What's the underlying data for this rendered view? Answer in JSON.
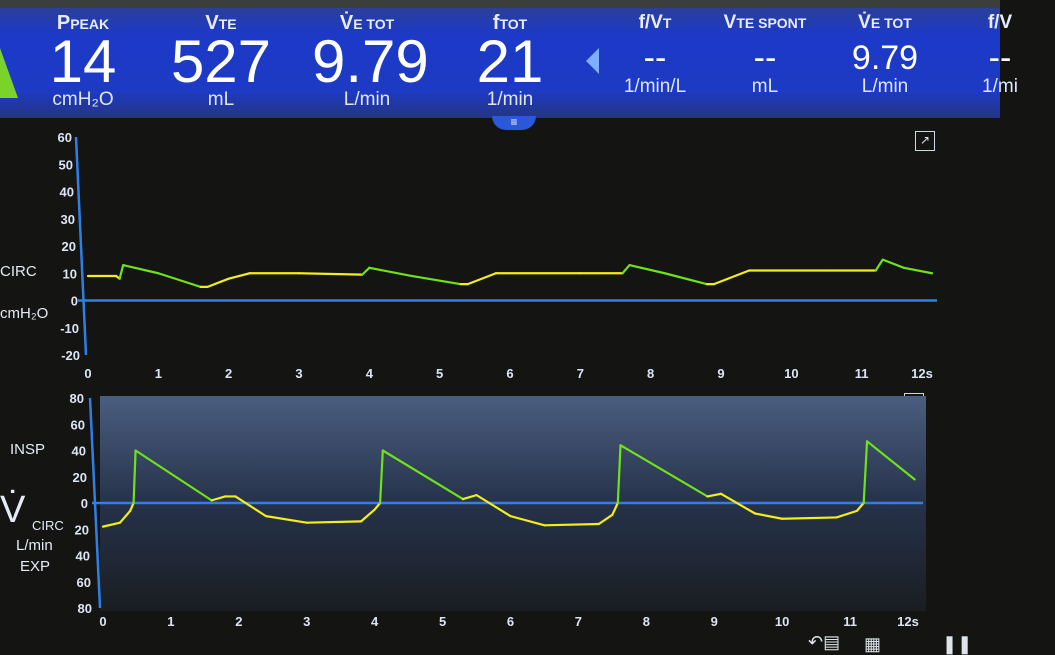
{
  "header": {
    "params": [
      {
        "label": "P",
        "sub": "PEAK",
        "value": "14",
        "unit": "cmH₂O"
      },
      {
        "label": "V",
        "sub": "TE",
        "value": "527",
        "unit": "mL"
      },
      {
        "label": "V̇",
        "sub": "E TOT",
        "value": "9.79",
        "unit": "L/min"
      },
      {
        "label": "f",
        "sub": "TOT",
        "value": "21",
        "unit": "1/min"
      }
    ],
    "secondary": [
      {
        "label": "f/V",
        "sub": "T",
        "value": "--",
        "unit": "1/min/L"
      },
      {
        "label": "V",
        "sub": "TE SPONT",
        "value": "--",
        "unit": "mL"
      },
      {
        "label": "V̇",
        "sub": "E TOT",
        "value": "9.79",
        "unit": "L/min"
      },
      {
        "label": "f/V",
        "sub": "",
        "value": "--",
        "unit": "1/mi"
      }
    ],
    "handle_icon": "≡"
  },
  "pressure": {
    "ylabel": "CIRC",
    "unit": "cmH₂O",
    "yticks": [
      "60",
      "50",
      "40",
      "30",
      "20",
      "10",
      "0",
      "-10",
      "-20"
    ],
    "xticks": [
      "0",
      "1",
      "2",
      "3",
      "4",
      "5",
      "6",
      "7",
      "8",
      "9",
      "10",
      "11",
      "12s"
    ],
    "expand_icon": "↗"
  },
  "flow": {
    "ylabel_symbol": "V̇",
    "ylabel": "CIRC",
    "unit": "L/min",
    "insp": "INSP",
    "exp": "EXP",
    "yticks": [
      "80",
      "60",
      "40",
      "20",
      "0",
      "20",
      "40",
      "60",
      "80"
    ],
    "xticks": [
      "0",
      "1",
      "2",
      "3",
      "4",
      "5",
      "6",
      "7",
      "8",
      "9",
      "10",
      "11",
      "12s"
    ],
    "expand_icon": "↗"
  },
  "colors": {
    "header": "#1d3ac4",
    "insp_trace": "#6fe21a",
    "exp_trace": "#f2ee1c",
    "axis": "#2f7fe6"
  },
  "chart_data": [
    {
      "type": "line",
      "ylabel": "CIRC cmH₂O",
      "xlim": [
        0,
        12
      ],
      "ylim": [
        -20,
        60
      ],
      "points": [
        [
          0,
          9,
          "e"
        ],
        [
          0.4,
          9,
          "e"
        ],
        [
          0.45,
          8,
          "e"
        ],
        [
          0.5,
          13,
          "i"
        ],
        [
          1.0,
          10,
          "i"
        ],
        [
          1.6,
          5,
          "i"
        ],
        [
          1.7,
          5,
          "e"
        ],
        [
          2.0,
          8,
          "e"
        ],
        [
          2.3,
          10,
          "e"
        ],
        [
          3.0,
          10,
          "e"
        ],
        [
          3.9,
          9.5,
          "e"
        ],
        [
          4.0,
          12,
          "i"
        ],
        [
          4.6,
          9,
          "i"
        ],
        [
          5.3,
          6,
          "i"
        ],
        [
          5.4,
          6,
          "e"
        ],
        [
          5.8,
          10,
          "e"
        ],
        [
          7.0,
          10,
          "e"
        ],
        [
          7.6,
          10,
          "e"
        ],
        [
          7.7,
          13,
          "i"
        ],
        [
          8.2,
          10,
          "i"
        ],
        [
          8.8,
          6,
          "i"
        ],
        [
          8.9,
          6,
          "e"
        ],
        [
          9.4,
          11,
          "e"
        ],
        [
          10.5,
          11,
          "e"
        ],
        [
          11.2,
          11,
          "e"
        ],
        [
          11.3,
          15,
          "i"
        ],
        [
          11.6,
          12,
          "i"
        ],
        [
          12.0,
          10,
          "i"
        ]
      ]
    },
    {
      "type": "line",
      "ylabel": "V̇ CIRC L/min",
      "xlim": [
        0,
        12
      ],
      "ylim": [
        -80,
        80
      ],
      "points": [
        [
          0,
          -18,
          "e"
        ],
        [
          0.25,
          -15,
          "e"
        ],
        [
          0.4,
          -6,
          "e"
        ],
        [
          0.45,
          0,
          "e"
        ],
        [
          0.45,
          0,
          "i"
        ],
        [
          0.48,
          40,
          "i"
        ],
        [
          1.6,
          2,
          "i"
        ],
        [
          1.6,
          2,
          "e"
        ],
        [
          1.8,
          5,
          "e"
        ],
        [
          1.95,
          5,
          "e"
        ],
        [
          2.4,
          -10,
          "e"
        ],
        [
          3.0,
          -15,
          "e"
        ],
        [
          3.8,
          -14,
          "e"
        ],
        [
          4.0,
          -5,
          "e"
        ],
        [
          4.08,
          0,
          "e"
        ],
        [
          4.08,
          0,
          "i"
        ],
        [
          4.12,
          40,
          "i"
        ],
        [
          5.3,
          3,
          "i"
        ],
        [
          5.3,
          3,
          "e"
        ],
        [
          5.5,
          6,
          "e"
        ],
        [
          6.0,
          -10,
          "e"
        ],
        [
          6.5,
          -17,
          "e"
        ],
        [
          7.3,
          -16,
          "e"
        ],
        [
          7.5,
          -9,
          "e"
        ],
        [
          7.58,
          0,
          "e"
        ],
        [
          7.58,
          0,
          "i"
        ],
        [
          7.62,
          44,
          "i"
        ],
        [
          8.9,
          5,
          "i"
        ],
        [
          8.9,
          5,
          "e"
        ],
        [
          9.1,
          7,
          "e"
        ],
        [
          9.6,
          -8,
          "e"
        ],
        [
          10.0,
          -12,
          "e"
        ],
        [
          10.8,
          -11,
          "e"
        ],
        [
          11.1,
          -6,
          "e"
        ],
        [
          11.2,
          0,
          "e"
        ],
        [
          11.2,
          0,
          "i"
        ],
        [
          11.25,
          47,
          "i"
        ],
        [
          11.95,
          18,
          "i"
        ]
      ]
    }
  ]
}
